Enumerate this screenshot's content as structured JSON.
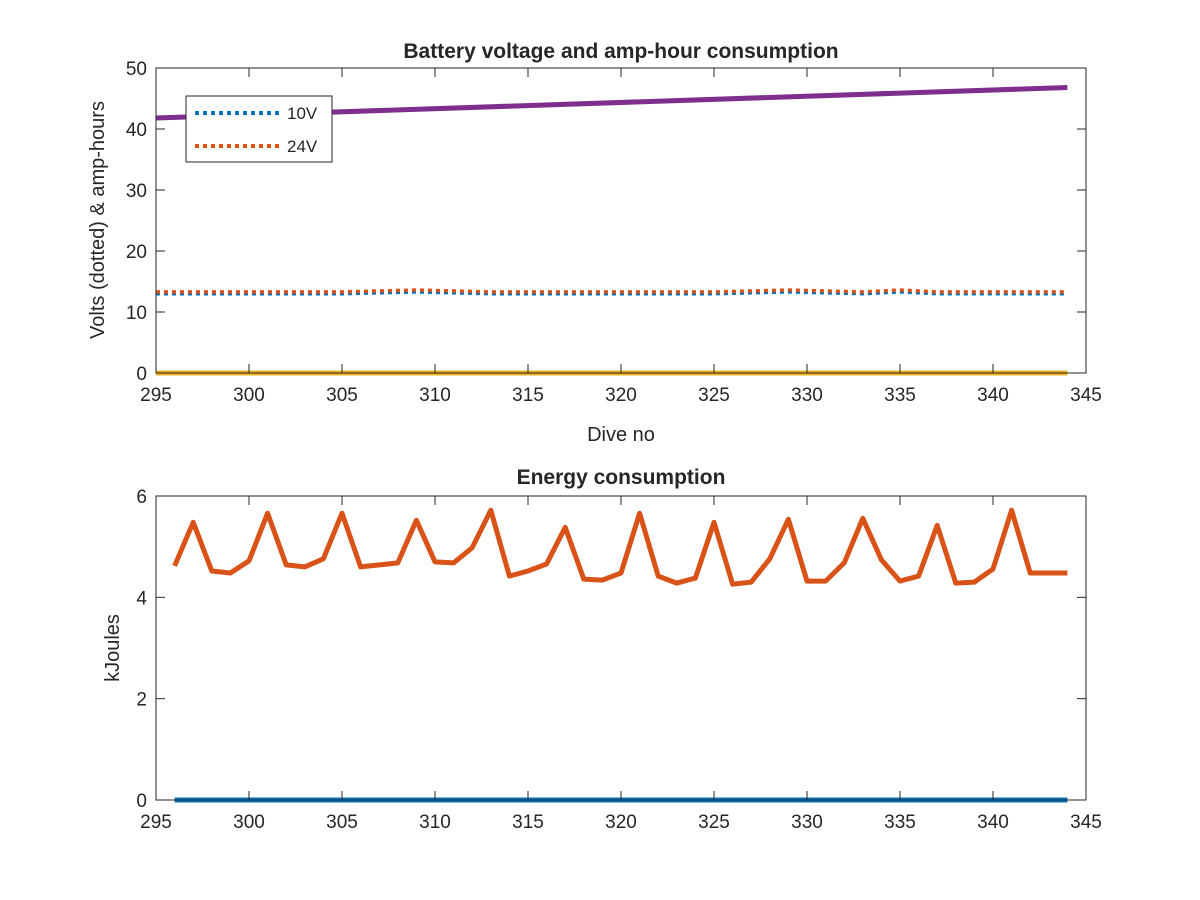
{
  "colors": {
    "blue": "#0072BD",
    "orange": "#D95319",
    "yellow": "#EDB120",
    "purple": "#7E2F8E",
    "axis": "#262626"
  },
  "chart_data": [
    {
      "type": "line",
      "title": "Battery voltage and amp-hour consumption",
      "xlabel": "Dive no",
      "ylabel": "Volts (dotted) & amp-hours",
      "xlim": [
        295,
        345
      ],
      "ylim": [
        0,
        50
      ],
      "xticks": [
        295,
        300,
        305,
        310,
        315,
        320,
        325,
        330,
        335,
        340,
        345
      ],
      "yticks": [
        0,
        10,
        20,
        30,
        40,
        50
      ],
      "grid": false,
      "legend": {
        "placement": "top-left",
        "entries": [
          "10V",
          "24V"
        ]
      },
      "series": [
        {
          "name": "10V",
          "style": "dotted",
          "color": "blue",
          "x": [
            295,
            300,
            305,
            309,
            313,
            317,
            321,
            325,
            329,
            333,
            335,
            337,
            341,
            344
          ],
          "y": [
            13.0,
            13.0,
            13.0,
            13.3,
            13.0,
            13.0,
            13.0,
            13.0,
            13.3,
            13.0,
            13.3,
            13.0,
            13.0,
            13.0
          ]
        },
        {
          "name": "24V",
          "style": "dotted",
          "color": "orange",
          "x": [
            295,
            300,
            305,
            309,
            313,
            317,
            321,
            325,
            329,
            333,
            335,
            337,
            341,
            344
          ],
          "y": [
            13.3,
            13.3,
            13.3,
            13.6,
            13.3,
            13.3,
            13.3,
            13.3,
            13.6,
            13.3,
            13.6,
            13.3,
            13.3,
            13.3
          ]
        },
        {
          "style": "solid",
          "color": "purple",
          "x": [
            295,
            344
          ],
          "y": [
            41.8,
            46.8
          ]
        },
        {
          "style": "solid",
          "color": "yellow",
          "x": [
            295,
            344
          ],
          "y": [
            0,
            0
          ]
        }
      ]
    },
    {
      "type": "line",
      "title": "Energy consumption",
      "xlabel": "",
      "ylabel": "kJoules",
      "xlim": [
        295,
        345
      ],
      "ylim": [
        0,
        6
      ],
      "xticks": [
        295,
        300,
        305,
        310,
        315,
        320,
        325,
        330,
        335,
        340,
        345
      ],
      "yticks": [
        0,
        2,
        4,
        6
      ],
      "grid": false,
      "series": [
        {
          "style": "solid",
          "color": "orange",
          "x": [
            296,
            297,
            298,
            299,
            300,
            301,
            302,
            303,
            304,
            305,
            306,
            307,
            308,
            309,
            310,
            311,
            312,
            313,
            314,
            315,
            316,
            317,
            318,
            319,
            320,
            321,
            322,
            323,
            324,
            325,
            326,
            327,
            328,
            329,
            330,
            331,
            332,
            333,
            334,
            335,
            336,
            337,
            338,
            339,
            340,
            341,
            342,
            343,
            344
          ],
          "y": [
            4.62,
            5.48,
            4.52,
            4.48,
            4.72,
            5.66,
            4.64,
            4.6,
            4.76,
            5.66,
            4.6,
            4.64,
            4.68,
            5.52,
            4.7,
            4.68,
            4.98,
            5.72,
            4.42,
            4.52,
            4.66,
            5.38,
            4.36,
            4.34,
            4.48,
            5.66,
            4.42,
            4.28,
            4.38,
            5.48,
            4.26,
            4.3,
            4.76,
            5.54,
            4.32,
            4.32,
            4.68,
            5.56,
            4.74,
            4.32,
            4.42,
            5.42,
            4.28,
            4.3,
            4.56,
            5.72,
            4.48,
            4.48,
            4.48
          ]
        },
        {
          "style": "solid",
          "color": "blue",
          "x": [
            296,
            344
          ],
          "y": [
            0,
            0
          ]
        }
      ]
    }
  ]
}
